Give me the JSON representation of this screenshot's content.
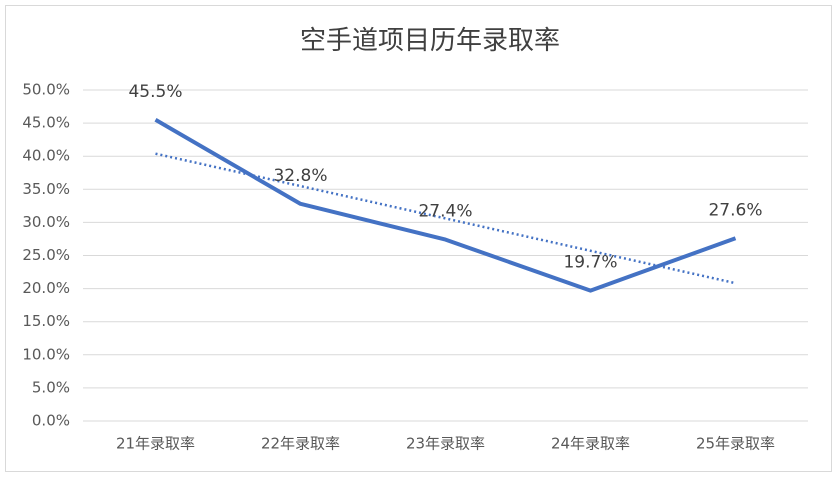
{
  "chart_data": {
    "type": "line",
    "title": "空手道项目历年录取率",
    "categories": [
      "21年录取率",
      "22年录取率",
      "23年录取率",
      "24年录取率",
      "25年录取率"
    ],
    "series": [
      {
        "color": "#4472c4",
        "values": [
          45.5,
          32.8,
          27.4,
          19.7,
          27.6
        ],
        "value_labels": [
          "45.5%",
          "32.8%",
          "27.4%",
          "19.7%",
          "27.6%"
        ]
      }
    ],
    "trendline": true,
    "ylim": [
      0,
      50
    ],
    "yticks": [
      {
        "value": 0,
        "label": "0.0%"
      },
      {
        "value": 5,
        "label": "5.0%"
      },
      {
        "value": 10,
        "label": "10.0%"
      },
      {
        "value": 15,
        "label": "15.0%"
      },
      {
        "value": 20,
        "label": "20.0%"
      },
      {
        "value": 25,
        "label": "25.0%"
      },
      {
        "value": 30,
        "label": "30.0%"
      },
      {
        "value": 35,
        "label": "35.0%"
      },
      {
        "value": 40,
        "label": "40.0%"
      },
      {
        "value": 45,
        "label": "45.0%"
      },
      {
        "value": 50,
        "label": "50.0%"
      }
    ],
    "grid": true
  }
}
